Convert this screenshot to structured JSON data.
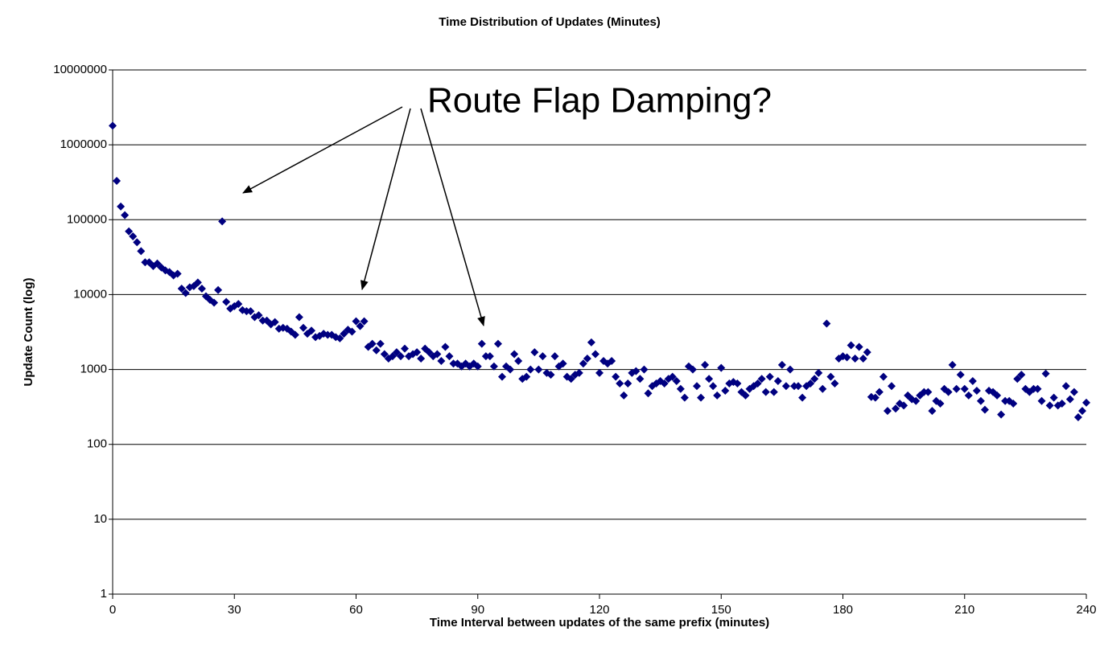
{
  "chart_data": {
    "type": "scatter",
    "title": "Time Distribution of Updates (Minutes)",
    "xlabel": "Time Interval between updates of the same prefix (minutes)",
    "ylabel": "Update Count (log)",
    "annotation": "Route Flap Damping?",
    "log_y": true,
    "grid": true,
    "color": "#000080",
    "xlim": [
      0,
      240
    ],
    "xticks": [
      0,
      30,
      60,
      90,
      120,
      150,
      180,
      210,
      240
    ],
    "ylim": [
      1,
      10000000
    ],
    "yticks": [
      1,
      10,
      100,
      1000,
      10000,
      100000,
      1000000,
      10000000
    ],
    "x": [
      0,
      1,
      2,
      3,
      4,
      5,
      6,
      7,
      8,
      9,
      10,
      11,
      12,
      13,
      14,
      15,
      16,
      17,
      18,
      19,
      20,
      21,
      22,
      23,
      24,
      25,
      26,
      27,
      28,
      29,
      30,
      31,
      32,
      33,
      34,
      35,
      36,
      37,
      38,
      39,
      40,
      41,
      42,
      43,
      44,
      45,
      46,
      47,
      48,
      49,
      50,
      51,
      52,
      53,
      54,
      55,
      56,
      57,
      58,
      59,
      60,
      61,
      62,
      63,
      64,
      65,
      66,
      67,
      68,
      69,
      70,
      71,
      72,
      73,
      74,
      75,
      76,
      77,
      78,
      79,
      80,
      81,
      82,
      83,
      84,
      85,
      86,
      87,
      88,
      89,
      90,
      91,
      92,
      93,
      94,
      95,
      96,
      97,
      98,
      99,
      100,
      101,
      102,
      103,
      104,
      105,
      106,
      107,
      108,
      109,
      110,
      111,
      112,
      113,
      114,
      115,
      116,
      117,
      118,
      119,
      120,
      121,
      122,
      123,
      124,
      125,
      126,
      127,
      128,
      129,
      130,
      131,
      132,
      133,
      134,
      135,
      136,
      137,
      138,
      139,
      140,
      141,
      142,
      143,
      144,
      145,
      146,
      147,
      148,
      149,
      150,
      151,
      152,
      153,
      154,
      155,
      156,
      157,
      158,
      159,
      160,
      161,
      162,
      163,
      164,
      165,
      166,
      167,
      168,
      169,
      170,
      171,
      172,
      173,
      174,
      175,
      176,
      177,
      178,
      179,
      180,
      181,
      182,
      183,
      184,
      185,
      186,
      187,
      188,
      189,
      190,
      191,
      192,
      193,
      194,
      195,
      196,
      197,
      198,
      199,
      200,
      201,
      202,
      203,
      204,
      205,
      206,
      207,
      208,
      209,
      210,
      211,
      212,
      213,
      214,
      215,
      216,
      217,
      218,
      219,
      220,
      221,
      222,
      223,
      224,
      225,
      226,
      227,
      228,
      229,
      230,
      231,
      232,
      233,
      234,
      235,
      236,
      237,
      238,
      239,
      240
    ],
    "values": [
      1800000,
      330000,
      150000,
      115000,
      70000,
      60000,
      50000,
      38000,
      27000,
      27000,
      24000,
      26000,
      23000,
      21000,
      20000,
      18000,
      19000,
      12000,
      10500,
      12500,
      13000,
      14500,
      12000,
      9500,
      8500,
      7800,
      11500,
      95000,
      8000,
      6500,
      7000,
      7500,
      6200,
      6000,
      6000,
      5000,
      5300,
      4500,
      4500,
      4000,
      4300,
      3500,
      3600,
      3500,
      3200,
      2900,
      5000,
      3600,
      3000,
      3300,
      2700,
      2800,
      3000,
      2900,
      2900,
      2700,
      2600,
      3000,
      3400,
      3200,
      4400,
      3800,
      4400,
      2000,
      2200,
      1800,
      2200,
      1600,
      1400,
      1500,
      1700,
      1500,
      1900,
      1500,
      1600,
      1700,
      1400,
      1900,
      1700,
      1500,
      1600,
      1300,
      2000,
      1500,
      1200,
      1200,
      1100,
      1200,
      1100,
      1200,
      1100,
      2200,
      1500,
      1500,
      1100,
      2200,
      800,
      1100,
      1000,
      1600,
      1300,
      750,
      800,
      1000,
      1700,
      1000,
      1500,
      900,
      850,
      1500,
      1100,
      1200,
      800,
      750,
      850,
      900,
      1200,
      1400,
      2300,
      1600,
      900,
      1300,
      1200,
      1300,
      800,
      650,
      450,
      650,
      900,
      950,
      750,
      1000,
      480,
      600,
      650,
      700,
      650,
      750,
      800,
      700,
      550,
      420,
      1100,
      1000,
      600,
      420,
      1150,
      750,
      600,
      450,
      1050,
      520,
      650,
      680,
      650,
      500,
      450,
      550,
      600,
      650,
      750,
      500,
      800,
      500,
      700,
      1150,
      600,
      1000,
      600,
      600,
      420,
      600,
      650,
      750,
      900,
      550,
      4100,
      800,
      650,
      1400,
      1500,
      1450,
      2100,
      1400,
      2000,
      1400,
      1700,
      430,
      420,
      500,
      800,
      280,
      600,
      300,
      350,
      330,
      450,
      400,
      380,
      450,
      500,
      500,
      280,
      380,
      350,
      550,
      500,
      1150,
      550,
      850,
      550,
      450,
      700,
      520,
      380,
      290,
      520,
      500,
      450,
      250,
      380,
      380,
      350,
      750,
      850,
      550,
      500,
      550,
      550,
      380,
      880,
      330,
      420,
      330,
      350,
      600,
      400,
      500,
      230,
      280,
      360
    ]
  }
}
